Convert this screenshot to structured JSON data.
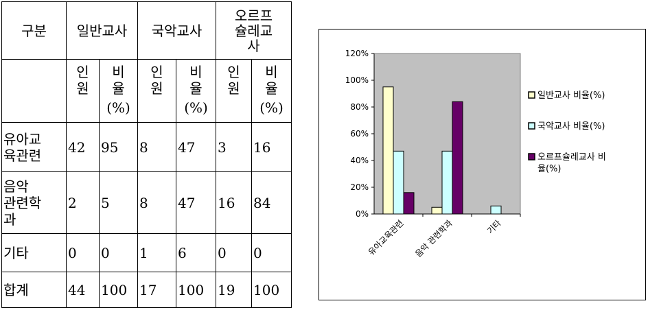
{
  "table": {
    "header": {
      "category": "구분",
      "groups": [
        "일반교사",
        "국악교사",
        "오르프슐레교사"
      ],
      "people": [
        "인",
        "원"
      ],
      "ratio": [
        "비",
        "율"
      ],
      "ratio_unit": "(%)"
    },
    "rows": [
      {
        "label": [
          "유아교",
          "육관련"
        ],
        "values": [
          "42",
          "95",
          "8",
          "47",
          "3",
          "16"
        ]
      },
      {
        "label": [
          "음악",
          "관련학",
          "과"
        ],
        "values": [
          "2",
          "5",
          "8",
          "47",
          "16",
          "84"
        ]
      },
      {
        "label": [
          "기타"
        ],
        "values": [
          "0",
          "0",
          "1",
          "6",
          "0",
          "0"
        ]
      },
      {
        "label": [
          "합계"
        ],
        "values": [
          "44",
          "100",
          "17",
          "100",
          "19",
          "100"
        ]
      }
    ]
  },
  "chart_data": {
    "type": "bar",
    "categories": [
      "유아교육관련",
      "음악 관련학과",
      "기타"
    ],
    "series": [
      {
        "name": "일반교사 비율(%)",
        "values": [
          95,
          5,
          0
        ],
        "color": "#FFFFCC"
      },
      {
        "name": "국악교사 비율(%)",
        "values": [
          47,
          47,
          6
        ],
        "color": "#CCFFFF"
      },
      {
        "name": "오르프슐레교사 비율(%)",
        "values": [
          16,
          84,
          0
        ],
        "color": "#660066"
      }
    ],
    "ylim": [
      0,
      120
    ],
    "yticks": [
      "0%",
      "20%",
      "40%",
      "60%",
      "80%",
      "100%",
      "120%"
    ],
    "plot_background": "#C0C0C0",
    "legend_position": "right",
    "legend_lines": [
      [
        "일반교사 비율(%)"
      ],
      [
        "국악교사 비율(%)"
      ],
      [
        "오르프슐레교사 비",
        "율(%)"
      ]
    ]
  }
}
